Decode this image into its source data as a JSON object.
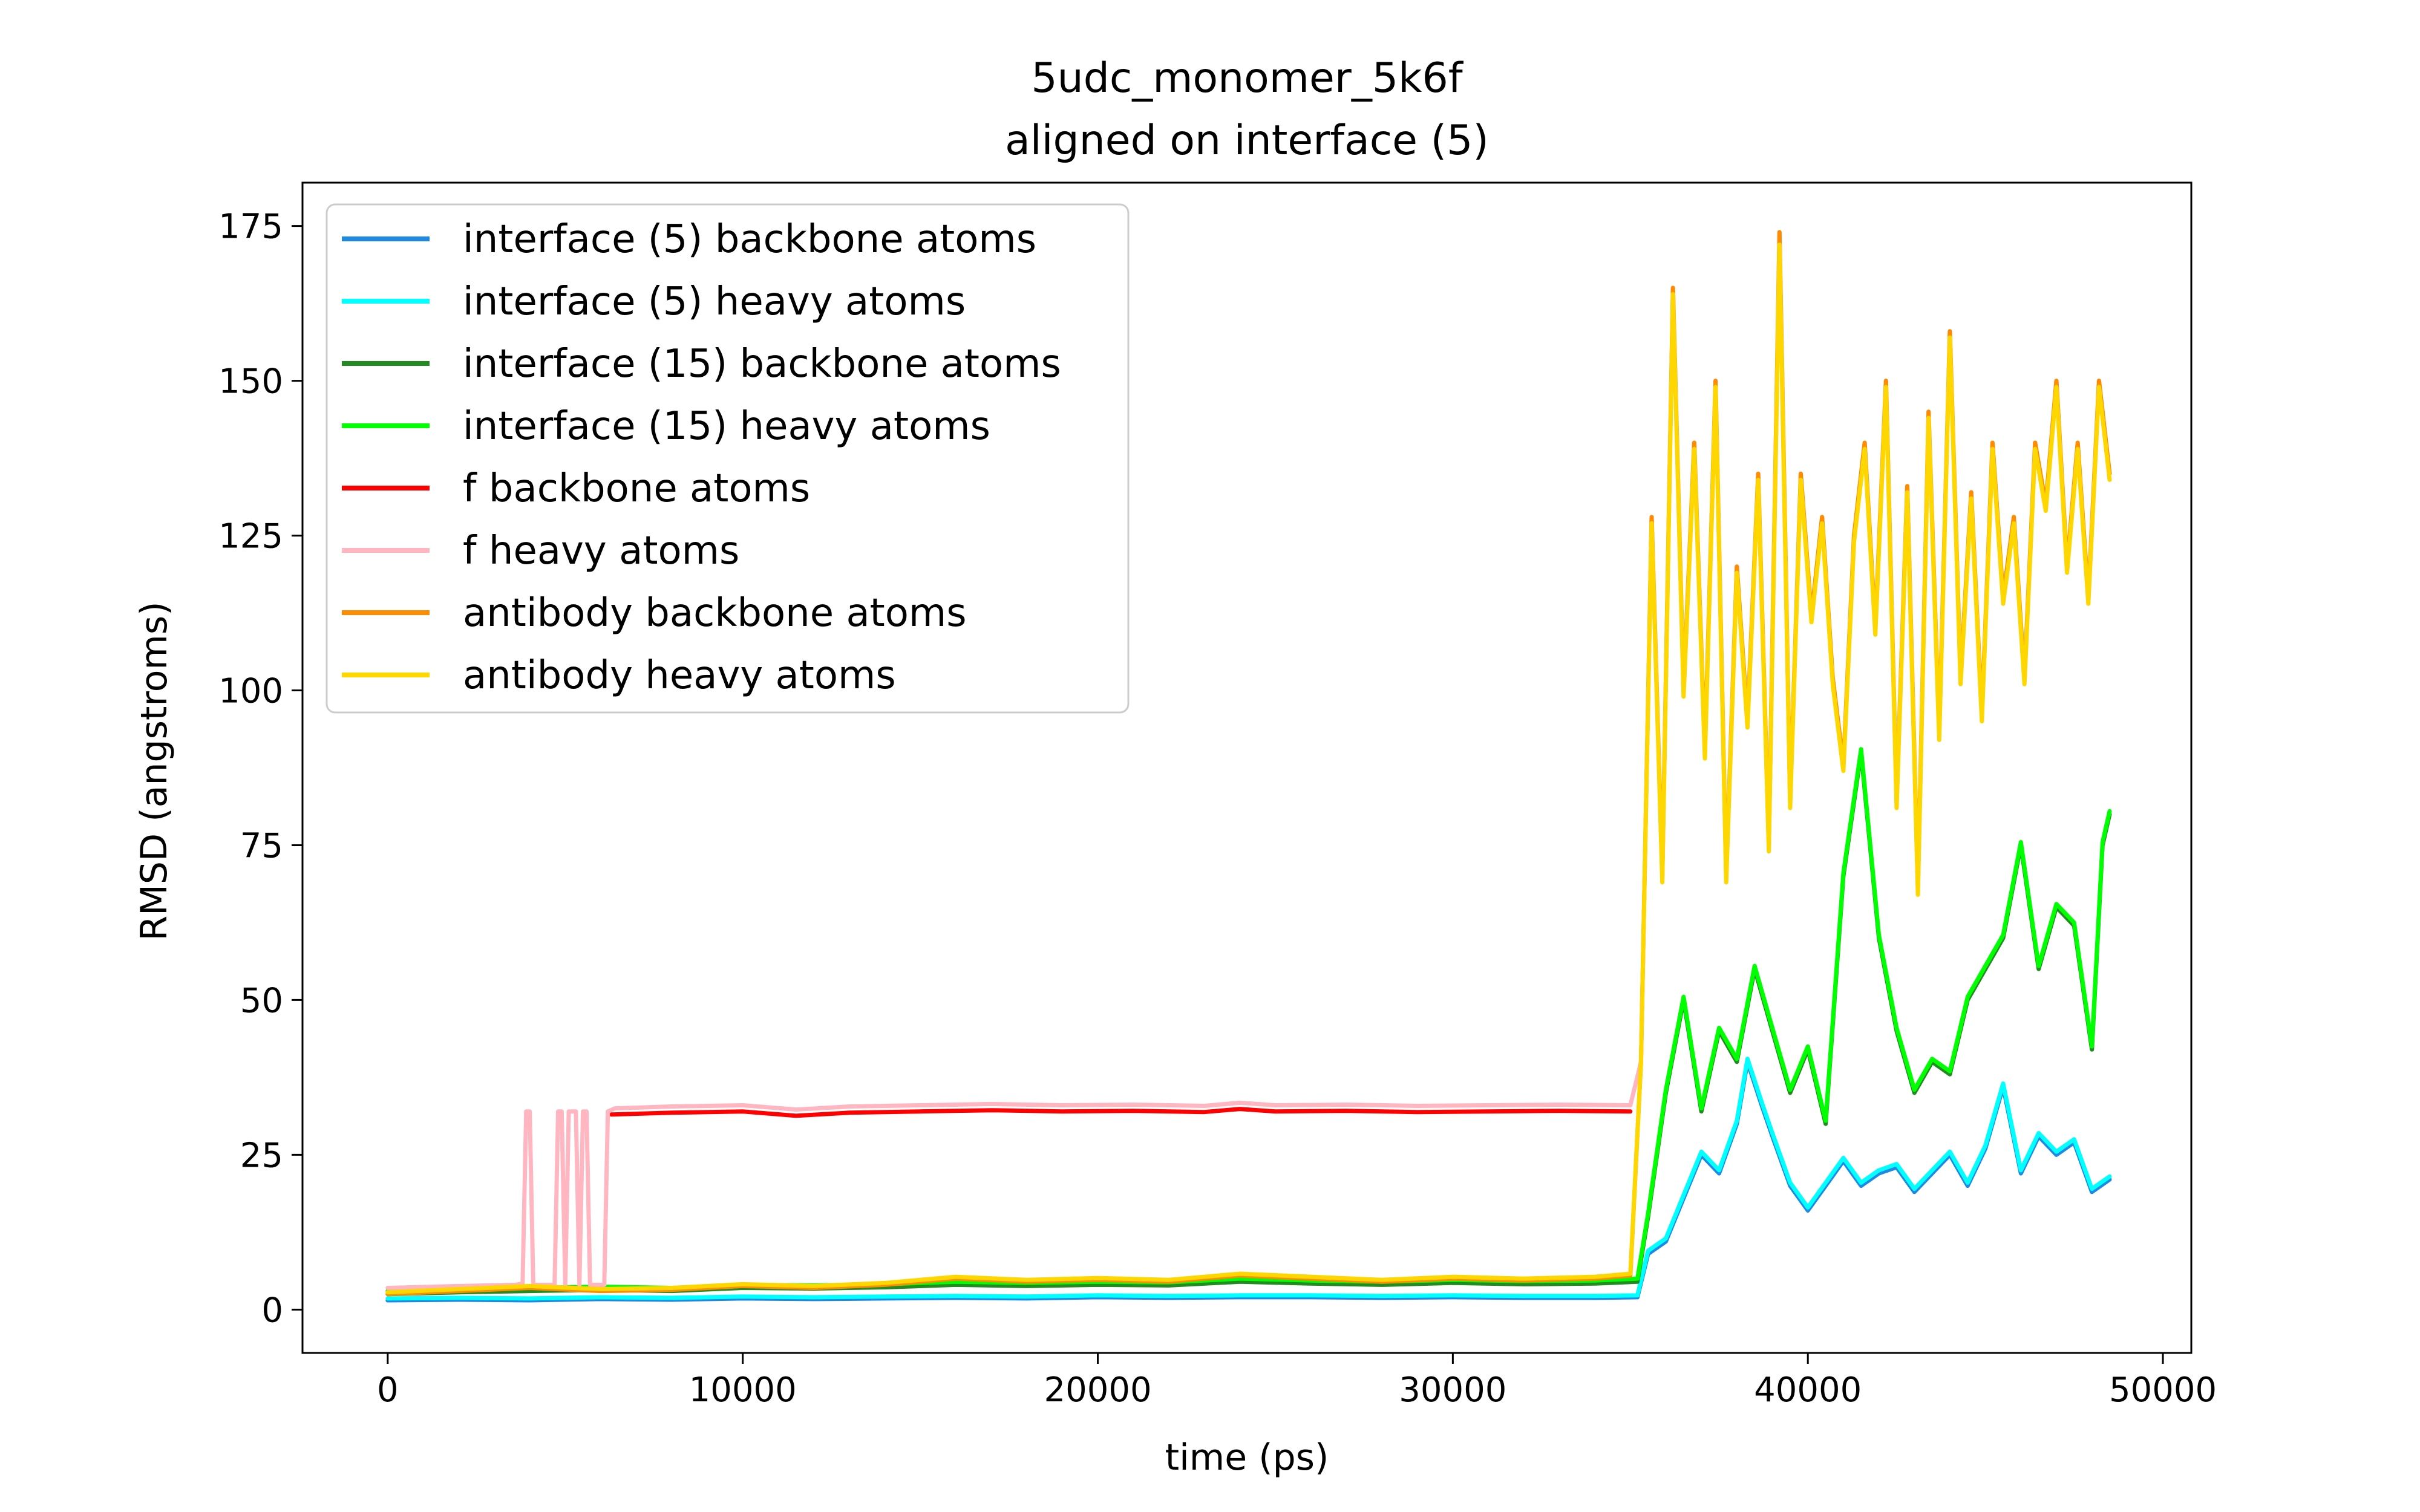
{
  "chart_data": {
    "type": "line",
    "title": "5udc_monomer_5k6f",
    "subtitle": "aligned on interface (5)",
    "xlabel": "time (ps)",
    "ylabel": "RMSD (angstroms)",
    "xlim": [
      -2400,
      50800
    ],
    "ylim": [
      -7,
      182
    ],
    "xticks": [
      0,
      10000,
      20000,
      30000,
      40000,
      50000
    ],
    "yticks": [
      0,
      25,
      50,
      75,
      100,
      125,
      150,
      175
    ],
    "grid": false,
    "legend_position": "upper-left",
    "series": [
      {
        "name": "interface (5) backbone atoms",
        "color": "#1e88e5",
        "x": [
          0,
          2000,
          4000,
          6000,
          8000,
          10000,
          12000,
          14000,
          16000,
          18000,
          20000,
          22000,
          24000,
          26000,
          28000,
          30000,
          32000,
          34000,
          35200,
          35500,
          36000,
          36500,
          37000,
          37500,
          38000,
          38300,
          38700,
          39000,
          39500,
          40000,
          40500,
          41000,
          41500,
          42000,
          42500,
          43000,
          43500,
          44000,
          44500,
          45000,
          45500,
          46000,
          46500,
          47000,
          47500,
          48000,
          48500
        ],
        "y": [
          1.5,
          1.6,
          1.5,
          1.7,
          1.6,
          1.8,
          1.7,
          1.8,
          1.9,
          1.8,
          2.0,
          1.9,
          2.0,
          2.0,
          1.9,
          2.0,
          1.9,
          1.9,
          2.0,
          9,
          11,
          18,
          25,
          22,
          30,
          40,
          33,
          28,
          20,
          16,
          20,
          24,
          20,
          22,
          23,
          19,
          22,
          25,
          20,
          26,
          36,
          22,
          28,
          25,
          27,
          19,
          21
        ]
      },
      {
        "name": "interface (5) heavy atoms",
        "color": "#00ffff",
        "x": [
          0,
          2000,
          4000,
          6000,
          8000,
          10000,
          12000,
          14000,
          16000,
          18000,
          20000,
          22000,
          24000,
          26000,
          28000,
          30000,
          32000,
          34000,
          35200,
          35500,
          36000,
          36500,
          37000,
          37500,
          38000,
          38300,
          38700,
          39000,
          39500,
          40000,
          40500,
          41000,
          41500,
          42000,
          42500,
          43000,
          43500,
          44000,
          44500,
          45000,
          45500,
          46000,
          46500,
          47000,
          47500,
          48000,
          48500
        ],
        "y": [
          1.8,
          1.9,
          1.8,
          2.0,
          1.9,
          2.1,
          2.0,
          2.1,
          2.2,
          2.1,
          2.3,
          2.2,
          2.3,
          2.3,
          2.2,
          2.3,
          2.2,
          2.2,
          2.3,
          9.5,
          11.5,
          18.5,
          25.5,
          22.5,
          30.5,
          40.5,
          33.5,
          28.5,
          20.5,
          16.5,
          20.5,
          24.5,
          20.5,
          22.5,
          23.5,
          19.5,
          22.5,
          25.5,
          20.5,
          26.5,
          36.5,
          22.5,
          28.5,
          25.5,
          27.5,
          19.5,
          21.5
        ]
      },
      {
        "name": "interface (15) backbone atoms",
        "color": "#228b22",
        "x": [
          0,
          2000,
          4000,
          6000,
          8000,
          10000,
          12000,
          14000,
          16000,
          18000,
          20000,
          22000,
          24000,
          26000,
          28000,
          30000,
          32000,
          34000,
          35200,
          35500,
          36000,
          36500,
          37000,
          37500,
          38000,
          38500,
          39000,
          39500,
          40000,
          40500,
          41000,
          41500,
          42000,
          42500,
          43000,
          43500,
          44000,
          44500,
          45000,
          45500,
          46000,
          46500,
          47000,
          47500,
          48000,
          48300,
          48500
        ],
        "y": [
          2.5,
          2.8,
          3.0,
          3.2,
          3.0,
          3.5,
          3.4,
          3.6,
          4.0,
          3.8,
          4.0,
          3.9,
          4.5,
          4.2,
          4.0,
          4.3,
          4.1,
          4.2,
          4.5,
          15,
          35,
          50,
          32,
          45,
          40,
          55,
          45,
          35,
          42,
          30,
          70,
          90,
          60,
          45,
          35,
          40,
          38,
          50,
          55,
          60,
          75,
          55,
          65,
          62,
          42,
          75,
          80
        ]
      },
      {
        "name": "interface (15) heavy atoms",
        "color": "#00ff00",
        "x": [
          0,
          2000,
          4000,
          6000,
          8000,
          10000,
          12000,
          14000,
          16000,
          18000,
          20000,
          22000,
          24000,
          26000,
          28000,
          30000,
          32000,
          34000,
          35200,
          35500,
          36000,
          36500,
          37000,
          37500,
          38000,
          38500,
          39000,
          39500,
          40000,
          40500,
          41000,
          41500,
          42000,
          42500,
          43000,
          43500,
          44000,
          44500,
          45000,
          45500,
          46000,
          46500,
          47000,
          47500,
          48000,
          48300,
          48500
        ],
        "y": [
          3.0,
          3.3,
          3.5,
          3.7,
          3.5,
          4.0,
          3.9,
          4.1,
          4.5,
          4.3,
          4.5,
          4.4,
          5.0,
          4.7,
          4.5,
          4.8,
          4.6,
          4.7,
          5.0,
          15.5,
          35.5,
          50.5,
          32.5,
          45.5,
          40.5,
          55.5,
          45.5,
          35.5,
          42.5,
          30.5,
          70.5,
          90.5,
          60.5,
          45.5,
          35.5,
          40.5,
          38.5,
          50.5,
          55.5,
          60.5,
          75.5,
          55.5,
          65.5,
          62.5,
          42.5,
          75.5,
          80.5
        ]
      },
      {
        "name": "f backbone atoms",
        "color": "#ff0000",
        "x": [
          6300,
          8000,
          10000,
          11500,
          13000,
          15000,
          17000,
          19000,
          21000,
          23000,
          24000,
          25000,
          27000,
          29000,
          31000,
          33000,
          35000
        ],
        "y": [
          31.5,
          31.8,
          32.0,
          31.3,
          31.8,
          32.0,
          32.2,
          32.0,
          32.1,
          31.9,
          32.4,
          32.0,
          32.1,
          31.9,
          32.0,
          32.1,
          32.0
        ]
      },
      {
        "name": "f heavy atoms",
        "color": "#ffb6c1",
        "x": [
          0,
          2000,
          3600,
          3800,
          3900,
          4000,
          4100,
          4700,
          4800,
          4900,
          5000,
          5100,
          5300,
          5400,
          5500,
          5600,
          5700,
          6100,
          6200,
          6400,
          8000,
          10000,
          11500,
          13000,
          15000,
          17000,
          19000,
          21000,
          23000,
          24000,
          25000,
          27000,
          29000,
          31000,
          33000,
          35000,
          35300,
          35600,
          35900,
          36200,
          36500,
          36800,
          37100,
          37400,
          37700,
          38000,
          38300,
          38600,
          38900,
          39200,
          39500,
          39800,
          40100,
          40400,
          40700,
          41000,
          41300,
          41600,
          41900,
          42200,
          42500,
          42800,
          43100,
          43400,
          43700,
          44000,
          44300,
          44600,
          44900,
          45200,
          45500,
          45800,
          46100,
          46400,
          46700,
          47000,
          47300,
          47600,
          47900,
          48200,
          48500
        ],
        "y": [
          3.5,
          3.8,
          4.0,
          4.2,
          32,
          32,
          4.0,
          4.0,
          32,
          32,
          4.0,
          32,
          32,
          4.0,
          32,
          32,
          4.0,
          4.0,
          32,
          32.5,
          32.8,
          33.0,
          32.3,
          32.8,
          33.0,
          33.2,
          33.0,
          33.1,
          32.9,
          33.4,
          33.0,
          33.1,
          32.9,
          33.0,
          33.1,
          33.0,
          40,
          128,
          70,
          165,
          100,
          140,
          90,
          150,
          70,
          120,
          95,
          135,
          75,
          174,
          82,
          135,
          112,
          128,
          102,
          88,
          125,
          140,
          110,
          150,
          82,
          133,
          68,
          145,
          93,
          158,
          102,
          132,
          96,
          140,
          115,
          128,
          102,
          140,
          130,
          150,
          120,
          140,
          115,
          150,
          135
        ]
      },
      {
        "name": "antibody backbone atoms",
        "color": "#ff8c00",
        "x": [
          0,
          2000,
          4000,
          6000,
          8000,
          10000,
          12000,
          14000,
          16000,
          18000,
          20000,
          22000,
          24000,
          26000,
          28000,
          30000,
          32000,
          34000,
          35000,
          35300,
          35600,
          35900,
          36200,
          36500,
          36800,
          37100,
          37400,
          37700,
          38000,
          38300,
          38600,
          38900,
          39200,
          39500,
          39800,
          40100,
          40400,
          40700,
          41000,
          41300,
          41600,
          41900,
          42200,
          42500,
          42800,
          43100,
          43400,
          43700,
          44000,
          44300,
          44600,
          44900,
          45200,
          45500,
          45800,
          46100,
          46400,
          46700,
          47000,
          47300,
          47600,
          47900,
          48200,
          48500
        ],
        "y": [
          2.5,
          3.0,
          3.5,
          3.0,
          3.2,
          3.8,
          3.5,
          4.0,
          5.0,
          4.5,
          4.8,
          4.5,
          5.5,
          5.0,
          4.5,
          5.0,
          4.7,
          5.0,
          5.5,
          40,
          128,
          70,
          165,
          100,
          140,
          90,
          150,
          70,
          120,
          95,
          135,
          75,
          174,
          82,
          135,
          112,
          128,
          102,
          88,
          125,
          140,
          110,
          150,
          82,
          133,
          68,
          145,
          93,
          158,
          102,
          132,
          96,
          140,
          115,
          128,
          102,
          140,
          130,
          150,
          120,
          140,
          115,
          150,
          135
        ]
      },
      {
        "name": "antibody heavy atoms",
        "color": "#ffd700",
        "x": [
          0,
          2000,
          4000,
          6000,
          8000,
          10000,
          12000,
          14000,
          16000,
          18000,
          20000,
          22000,
          24000,
          26000,
          28000,
          30000,
          32000,
          34000,
          35000,
          35300,
          35600,
          35900,
          36200,
          36500,
          36800,
          37100,
          37400,
          37700,
          38000,
          38300,
          38600,
          38900,
          39200,
          39500,
          39800,
          40100,
          40400,
          40700,
          41000,
          41300,
          41600,
          41900,
          42200,
          42500,
          42800,
          43100,
          43400,
          43700,
          44000,
          44300,
          44600,
          44900,
          45200,
          45500,
          45800,
          46100,
          46400,
          46700,
          47000,
          47300,
          47600,
          47900,
          48200,
          48500
        ],
        "y": [
          2.8,
          3.3,
          3.8,
          3.3,
          3.5,
          4.1,
          3.8,
          4.3,
          5.3,
          4.8,
          5.1,
          4.8,
          5.8,
          5.3,
          4.8,
          5.3,
          5.0,
          5.3,
          5.8,
          40,
          127,
          69,
          164,
          99,
          139,
          89,
          149,
          69,
          119,
          94,
          134,
          74,
          172,
          81,
          134,
          111,
          127,
          101,
          87,
          124,
          139,
          109,
          149,
          81,
          132,
          67,
          144,
          92,
          157,
          101,
          131,
          95,
          139,
          114,
          127,
          101,
          139,
          129,
          149,
          119,
          139,
          114,
          149,
          134
        ]
      }
    ]
  }
}
